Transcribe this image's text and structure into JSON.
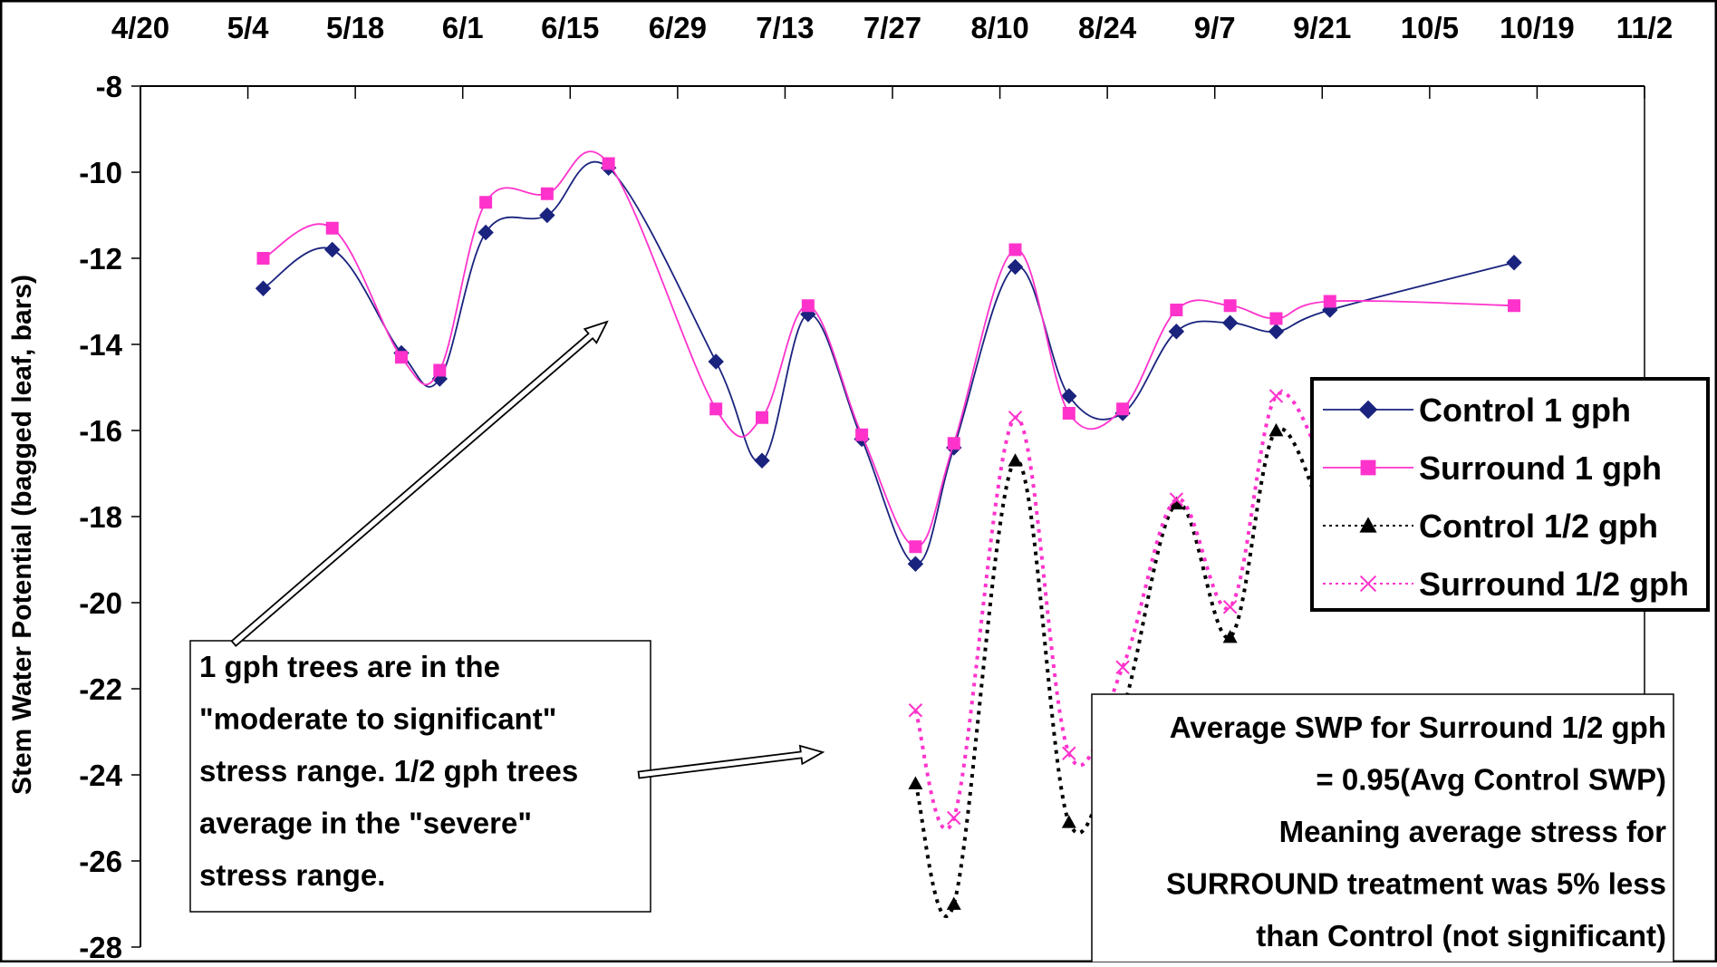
{
  "chart_data": {
    "type": "line",
    "ylabel": "Stem Water Potential (bagged leaf, bars)",
    "xlabel": "",
    "x_ticks": [
      "4/20",
      "5/4",
      "5/18",
      "6/1",
      "6/15",
      "6/29",
      "7/13",
      "7/27",
      "8/10",
      "8/24",
      "9/7",
      "9/21",
      "10/5",
      "10/19",
      "11/2"
    ],
    "xlim": [
      "4/20",
      "11/2"
    ],
    "ylim": [
      -28,
      -8
    ],
    "y_ticks": [
      -8,
      -10,
      -12,
      -14,
      -16,
      -18,
      -20,
      -22,
      -24,
      -26,
      -28
    ],
    "series": [
      {
        "name": "Control 1 gph",
        "color": "#1a237e",
        "marker": "diamond",
        "line": "solid",
        "points": [
          [
            "5/6",
            -12.7
          ],
          [
            "5/15",
            -11.8
          ],
          [
            "5/24",
            -14.2
          ],
          [
            "5/29",
            -14.8
          ],
          [
            "6/4",
            -11.4
          ],
          [
            "6/12",
            -11.0
          ],
          [
            "6/20",
            -9.9
          ],
          [
            "7/4",
            -14.4
          ],
          [
            "7/10",
            -16.7
          ],
          [
            "7/16",
            -13.3
          ],
          [
            "7/23",
            -16.2
          ],
          [
            "7/30",
            -19.1
          ],
          [
            "8/4",
            -16.4
          ],
          [
            "8/12",
            -12.2
          ],
          [
            "8/19",
            -15.2
          ],
          [
            "8/26",
            -15.6
          ],
          [
            "9/2",
            -13.7
          ],
          [
            "9/9",
            -13.5
          ],
          [
            "9/15",
            -13.7
          ],
          [
            "9/22",
            -13.2
          ],
          [
            "10/16",
            -12.1
          ]
        ]
      },
      {
        "name": "Surround 1 gph",
        "color": "#ff33cc",
        "marker": "square",
        "line": "solid",
        "points": [
          [
            "5/6",
            -12.0
          ],
          [
            "5/15",
            -11.3
          ],
          [
            "5/24",
            -14.3
          ],
          [
            "5/29",
            -14.6
          ],
          [
            "6/4",
            -10.7
          ],
          [
            "6/12",
            -10.5
          ],
          [
            "6/20",
            -9.8
          ],
          [
            "7/4",
            -15.5
          ],
          [
            "7/10",
            -15.7
          ],
          [
            "7/16",
            -13.1
          ],
          [
            "7/23",
            -16.1
          ],
          [
            "7/30",
            -18.7
          ],
          [
            "8/4",
            -16.3
          ],
          [
            "8/12",
            -11.8
          ],
          [
            "8/19",
            -15.6
          ],
          [
            "8/26",
            -15.5
          ],
          [
            "9/2",
            -13.2
          ],
          [
            "9/9",
            -13.1
          ],
          [
            "9/15",
            -13.4
          ],
          [
            "9/22",
            -13.0
          ],
          [
            "10/16",
            -13.1
          ]
        ]
      },
      {
        "name": "Control 1/2 gph",
        "color": "#000000",
        "marker": "triangle",
        "line": "dotted",
        "points": [
          [
            "7/30",
            -24.2
          ],
          [
            "8/4",
            -27.0
          ],
          [
            "8/12",
            -16.7
          ],
          [
            "8/19",
            -25.1
          ],
          [
            "8/26",
            -22.5
          ],
          [
            "9/2",
            -17.7
          ],
          [
            "9/9",
            -20.8
          ],
          [
            "9/15",
            -16.0
          ],
          [
            "9/22",
            -18.5
          ]
        ]
      },
      {
        "name": "Surround 1/2 gph",
        "color": "#ff33cc",
        "marker": "x",
        "line": "dotted",
        "points": [
          [
            "7/30",
            -22.5
          ],
          [
            "8/4",
            -25.0
          ],
          [
            "8/12",
            -15.7
          ],
          [
            "8/19",
            -23.5
          ],
          [
            "8/26",
            -21.5
          ],
          [
            "9/2",
            -17.6
          ],
          [
            "9/9",
            -20.1
          ],
          [
            "9/15",
            -15.2
          ],
          [
            "9/22",
            -17.2
          ]
        ]
      }
    ],
    "legend_position": "right",
    "grid": false,
    "annotations": [
      {
        "lines": [
          "1 gph trees are in the",
          "\"moderate to significant\"",
          "stress range.  1/2 gph trees",
          "average in the \"severe\"",
          "stress range."
        ]
      },
      {
        "lines": [
          "Average SWP for Surround 1/2 gph",
          "= 0.95(Avg Control SWP)",
          "Meaning average stress for",
          "SURROUND treatment was 5% less",
          "than Control (not significant)"
        ]
      }
    ]
  }
}
